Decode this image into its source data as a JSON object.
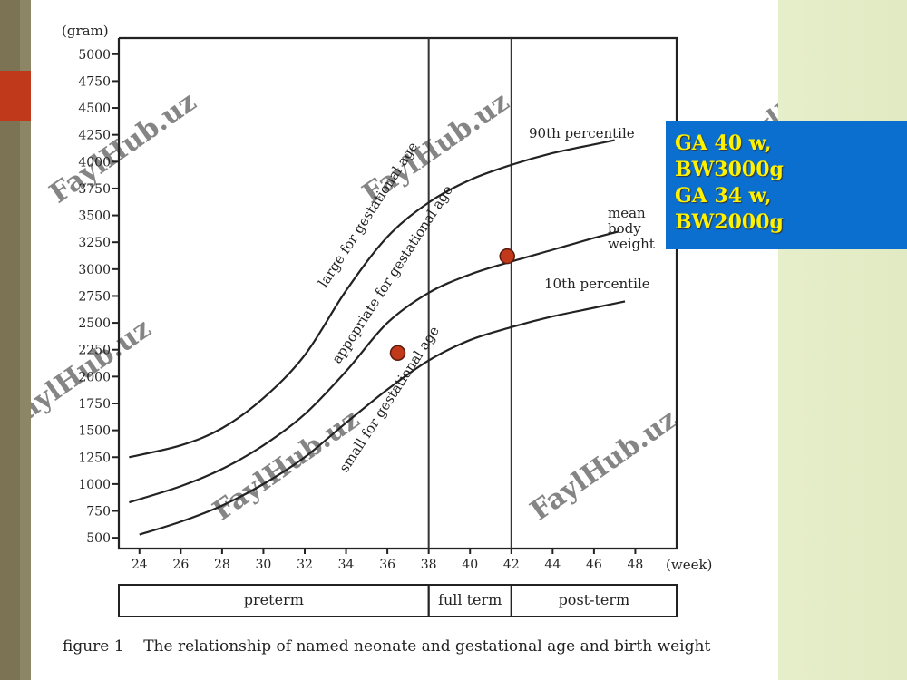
{
  "slide": {
    "info_lines": [
      "GA 40 w,",
      "BW3000g",
      "GA 34 w,",
      "BW2000g"
    ],
    "watermark": "FaylHub.uz",
    "colors": {
      "info_box": "#0a6fcf",
      "info_text": "#fff200",
      "accent": "#c0391b",
      "rail": "#7b7353",
      "marker": "#c0391b"
    }
  },
  "chart_data": {
    "type": "line",
    "ylabel": "(gram)",
    "xlabel": "(week)",
    "caption": "figure 1    The relationship of named neonate and gestational age and birth weight",
    "x_ticks": [
      24,
      26,
      28,
      30,
      32,
      34,
      36,
      38,
      40,
      42,
      44,
      46,
      48
    ],
    "y_ticks": [
      500,
      750,
      1000,
      1250,
      1500,
      1750,
      2000,
      2250,
      2500,
      2750,
      3000,
      3250,
      3500,
      3750,
      4000,
      4250,
      4500,
      4750,
      5000
    ],
    "xlim": [
      23,
      50
    ],
    "ylim": [
      400,
      5150
    ],
    "vertical_lines": [
      38,
      42
    ],
    "series": [
      {
        "name": "90th percentile",
        "x": [
          23.5,
          26,
          28,
          30,
          32,
          34,
          36,
          38,
          40,
          42,
          44,
          46,
          47
        ],
        "y": [
          1250,
          1360,
          1520,
          1800,
          2200,
          2800,
          3300,
          3620,
          3830,
          3970,
          4080,
          4160,
          4200
        ]
      },
      {
        "name": "mean body weight",
        "x": [
          23.5,
          26,
          28,
          30,
          32,
          34,
          36,
          38,
          40,
          42,
          44,
          46,
          47.2
        ],
        "y": [
          830,
          980,
          1140,
          1360,
          1650,
          2050,
          2500,
          2780,
          2950,
          3070,
          3180,
          3290,
          3350
        ]
      },
      {
        "name": "10th percentile",
        "x": [
          24,
          26,
          28,
          30,
          32,
          34,
          36,
          38,
          40,
          42,
          44,
          46,
          47.5
        ],
        "y": [
          530,
          650,
          800,
          1000,
          1250,
          1570,
          1880,
          2150,
          2340,
          2460,
          2560,
          2640,
          2700
        ]
      }
    ],
    "curve_labels": [
      {
        "text": "90th percentile"
      },
      {
        "text": "mean"
      },
      {
        "text": "body"
      },
      {
        "text": "weight"
      },
      {
        "text": "10th percentile"
      }
    ],
    "region_labels": [
      {
        "text": "large for gestational age"
      },
      {
        "text": "appopriate for gestational age"
      },
      {
        "text": "small for gestational age"
      }
    ],
    "term_bands": [
      {
        "label": "preterm",
        "from": 23,
        "to": 38
      },
      {
        "label": "full term",
        "from": 38,
        "to": 42
      },
      {
        "label": "post-term",
        "from": 42,
        "to": 50
      }
    ],
    "markers": [
      {
        "x": 41.8,
        "y": 3120
      },
      {
        "x": 36.5,
        "y": 2220
      }
    ],
    "grid": false,
    "legend": "none"
  }
}
